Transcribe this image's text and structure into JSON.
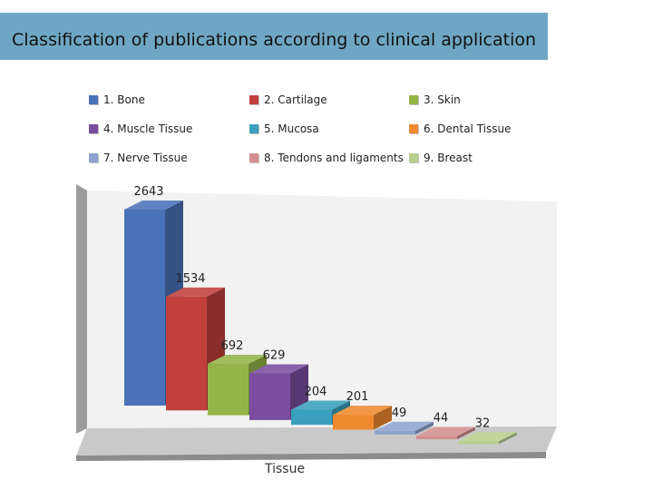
{
  "title": "Classification of publications according to clinical application",
  "chart_data": {
    "type": "bar",
    "title": "Classification of publications according to clinical application",
    "xlabel": "Tissue",
    "ylabel": "",
    "categories": [
      "1. Bone",
      "2. Cartilage",
      "3. Skin",
      "4. Muscle Tissue",
      "5. Mucosa",
      "6. Dental Tissue",
      "7. Nerve Tissue",
      "8. Tendons and ligaments",
      "9. Breast"
    ],
    "values": [
      2643,
      1534,
      692,
      629,
      204,
      201,
      49,
      44,
      32
    ],
    "colors": [
      "#4a72b8",
      "#c0403c",
      "#93b548",
      "#7a4e9e",
      "#3aa0bd",
      "#ef8a2e",
      "#8fa3cf",
      "#d38f8f",
      "#b7cf8f"
    ],
    "legend_position": "top",
    "three_d": true,
    "grid": false
  }
}
